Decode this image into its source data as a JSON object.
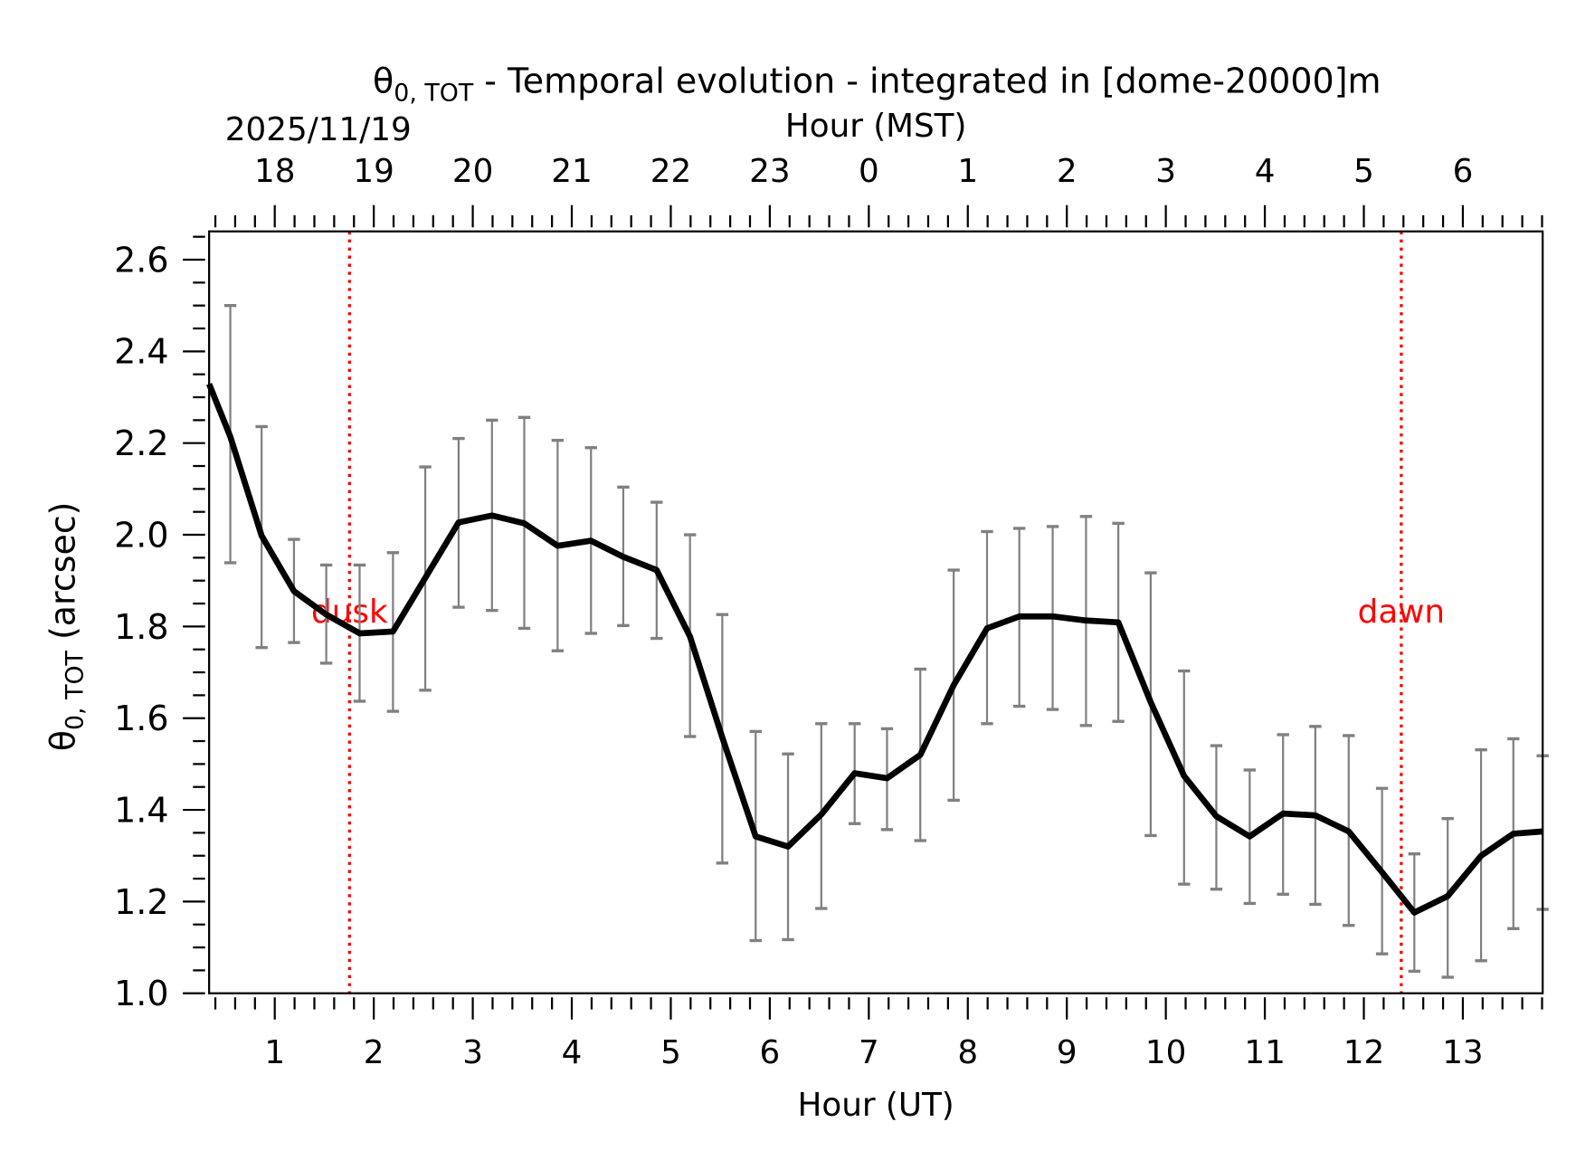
{
  "chart_data": {
    "type": "line",
    "title": "θ0,TOT - Temporal evolution - integrated in [dome-20000]m",
    "title_symbol": "θ",
    "title_subscript": "0, TOT",
    "title_rest": " - Temporal evolution - integrated in [dome-20000]m",
    "date_label": "2025/11/19",
    "xlabel": "Hour (UT)",
    "x2label": "Hour (MST)",
    "ylabel_symbol": "θ",
    "ylabel_subscript": "0, TOT",
    "ylabel_rest": " (arcsec)",
    "xlim": [
      0.337,
      13.806
    ],
    "ylim": [
      1.0,
      2.65
    ],
    "x_ticks": [
      1,
      2,
      3,
      4,
      5,
      6,
      7,
      8,
      9,
      10,
      11,
      12,
      13
    ],
    "x2_tick_labels": [
      "18",
      "19",
      "20",
      "21",
      "22",
      "23",
      "0",
      "1",
      "2",
      "3",
      "4",
      "5",
      "6"
    ],
    "y_ticks": [
      "1.0",
      "1.2",
      "1.4",
      "1.6",
      "1.8",
      "2.0",
      "2.2",
      "2.4",
      "2.6"
    ],
    "grid": false,
    "line_color": "#000000",
    "errorbar_color": "#808080",
    "annotation_color": "#ff0000",
    "annotations": [
      {
        "label": "dusk",
        "x": 1.755
      },
      {
        "label": "dawn",
        "x": 12.378
      }
    ],
    "series": [
      {
        "x": [
          0.337,
          0.551,
          0.867,
          1.194,
          1.52,
          1.857,
          2.194,
          2.52,
          2.857,
          3.194,
          3.52,
          3.857,
          4.194,
          4.52,
          4.857,
          5.194,
          5.52,
          5.857,
          6.184,
          6.52,
          6.857,
          7.184,
          7.52,
          7.857,
          8.194,
          8.52,
          8.857,
          9.194,
          9.52,
          9.847,
          10.184,
          10.51,
          10.847,
          11.184,
          11.51,
          11.847,
          12.184,
          12.51,
          12.847,
          13.184,
          13.51,
          13.806
        ],
        "y": [
          2.329,
          2.214,
          1.998,
          1.877,
          1.826,
          1.785,
          1.789,
          1.906,
          2.027,
          2.042,
          2.025,
          1.976,
          1.987,
          1.952,
          1.923,
          1.778,
          1.558,
          1.342,
          1.32,
          1.39,
          1.48,
          1.469,
          1.52,
          1.672,
          1.796,
          1.822,
          1.822,
          1.813,
          1.809,
          1.635,
          1.474,
          1.386,
          1.342,
          1.392,
          1.388,
          1.353,
          1.264,
          1.176,
          1.212,
          1.3,
          1.348,
          1.353
        ],
        "y_upper": [
          null,
          2.5,
          2.236,
          1.99,
          1.934,
          1.934,
          1.961,
          2.148,
          2.21,
          2.25,
          2.256,
          2.206,
          2.19,
          2.104,
          2.071,
          2.0,
          1.826,
          1.571,
          1.522,
          1.588,
          1.588,
          1.577,
          1.707,
          1.923,
          2.007,
          2.014,
          2.018,
          2.04,
          2.025,
          1.917,
          1.703,
          1.54,
          1.487,
          1.564,
          1.582,
          1.562,
          1.447,
          1.304,
          1.381,
          1.531,
          1.555,
          1.518
        ],
        "y_lower": [
          null,
          1.939,
          1.754,
          1.765,
          1.72,
          1.637,
          1.615,
          1.661,
          1.842,
          1.835,
          1.796,
          1.747,
          1.785,
          1.802,
          1.774,
          1.56,
          1.284,
          1.115,
          1.117,
          1.185,
          1.37,
          1.357,
          1.333,
          1.421,
          1.588,
          1.626,
          1.619,
          1.584,
          1.593,
          1.344,
          1.238,
          1.227,
          1.196,
          1.216,
          1.194,
          1.148,
          1.086,
          1.048,
          1.035,
          1.071,
          1.141,
          1.183
        ]
      }
    ]
  }
}
